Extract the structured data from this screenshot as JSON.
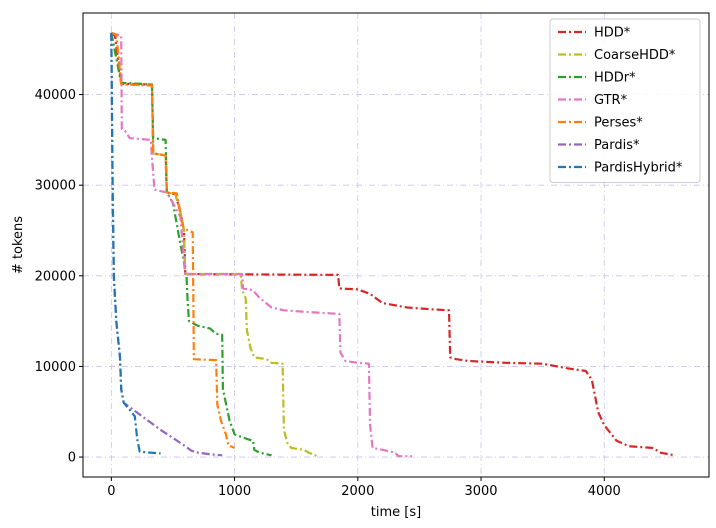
{
  "chart_data": {
    "type": "line",
    "title": "",
    "xlabel": "time [s]",
    "ylabel": "# tokens",
    "xlim": [
      -230,
      4850
    ],
    "ylim": [
      -2200,
      49000
    ],
    "xticks": [
      0,
      1000,
      2000,
      3000,
      4000
    ],
    "yticks": [
      0,
      10000,
      20000,
      30000,
      40000
    ],
    "grid": true,
    "legend_position": "top-right",
    "series": [
      {
        "name": "HDD*",
        "color": "#d62728",
        "points": [
          [
            0,
            46800
          ],
          [
            30,
            46500
          ],
          [
            80,
            41200
          ],
          [
            330,
            41100
          ],
          [
            340,
            33500
          ],
          [
            440,
            33300
          ],
          [
            450,
            29200
          ],
          [
            520,
            29000
          ],
          [
            560,
            27000
          ],
          [
            590,
            25000
          ],
          [
            600,
            20200
          ],
          [
            1840,
            20100
          ],
          [
            1850,
            18600
          ],
          [
            2000,
            18500
          ],
          [
            2100,
            18000
          ],
          [
            2200,
            17000
          ],
          [
            2400,
            16500
          ],
          [
            2600,
            16300
          ],
          [
            2740,
            16200
          ],
          [
            2750,
            11000
          ],
          [
            2800,
            10800
          ],
          [
            2900,
            10600
          ],
          [
            3200,
            10400
          ],
          [
            3500,
            10300
          ],
          [
            3700,
            9800
          ],
          [
            3850,
            9500
          ],
          [
            3900,
            8500
          ],
          [
            3950,
            5000
          ],
          [
            4000,
            3500
          ],
          [
            4100,
            1800
          ],
          [
            4200,
            1200
          ],
          [
            4400,
            1000
          ],
          [
            4450,
            500
          ],
          [
            4570,
            200
          ]
        ]
      },
      {
        "name": "CoarseHDD*",
        "color": "#bcbd22",
        "points": [
          [
            0,
            46800
          ],
          [
            80,
            41300
          ],
          [
            330,
            41100
          ],
          [
            340,
            33500
          ],
          [
            440,
            33300
          ],
          [
            450,
            29200
          ],
          [
            520,
            29000
          ],
          [
            560,
            27000
          ],
          [
            590,
            25000
          ],
          [
            600,
            20200
          ],
          [
            1050,
            20200
          ],
          [
            1060,
            18500
          ],
          [
            1090,
            17500
          ],
          [
            1100,
            14000
          ],
          [
            1130,
            12000
          ],
          [
            1160,
            11000
          ],
          [
            1260,
            10800
          ],
          [
            1300,
            10400
          ],
          [
            1390,
            10300
          ],
          [
            1400,
            3000
          ],
          [
            1430,
            1500
          ],
          [
            1460,
            1000
          ],
          [
            1560,
            800
          ],
          [
            1600,
            500
          ],
          [
            1670,
            100
          ]
        ]
      },
      {
        "name": "HDDr*",
        "color": "#2ca02c",
        "points": [
          [
            0,
            46800
          ],
          [
            80,
            41300
          ],
          [
            330,
            41100
          ],
          [
            340,
            35200
          ],
          [
            440,
            35000
          ],
          [
            450,
            29200
          ],
          [
            460,
            29000
          ],
          [
            500,
            28000
          ],
          [
            560,
            23500
          ],
          [
            590,
            21500
          ],
          [
            600,
            20200
          ],
          [
            610,
            20000
          ],
          [
            620,
            17000
          ],
          [
            630,
            15000
          ],
          [
            700,
            14500
          ],
          [
            800,
            14200
          ],
          [
            850,
            13600
          ],
          [
            900,
            13500
          ],
          [
            905,
            7500
          ],
          [
            960,
            4000
          ],
          [
            1000,
            2500
          ],
          [
            1100,
            2000
          ],
          [
            1150,
            1800
          ],
          [
            1160,
            800
          ],
          [
            1200,
            500
          ],
          [
            1300,
            200
          ]
        ]
      },
      {
        "name": "GTR*",
        "color": "#e377c2",
        "points": [
          [
            0,
            46800
          ],
          [
            80,
            46500
          ],
          [
            85,
            36200
          ],
          [
            110,
            36000
          ],
          [
            150,
            35200
          ],
          [
            320,
            35000
          ],
          [
            330,
            33000
          ],
          [
            350,
            29500
          ],
          [
            450,
            29200
          ],
          [
            500,
            28000
          ],
          [
            560,
            26500
          ],
          [
            600,
            20200
          ],
          [
            1060,
            20200
          ],
          [
            1070,
            18600
          ],
          [
            1150,
            18400
          ],
          [
            1200,
            17600
          ],
          [
            1300,
            16500
          ],
          [
            1400,
            16200
          ],
          [
            1600,
            16000
          ],
          [
            1850,
            15800
          ],
          [
            1860,
            11500
          ],
          [
            1900,
            10600
          ],
          [
            2000,
            10400
          ],
          [
            2090,
            10300
          ],
          [
            2100,
            3500
          ],
          [
            2120,
            1000
          ],
          [
            2200,
            800
          ],
          [
            2300,
            500
          ],
          [
            2330,
            100
          ],
          [
            2440,
            100
          ]
        ]
      },
      {
        "name": "Perses*",
        "color": "#ff7f0e",
        "points": [
          [
            0,
            46800
          ],
          [
            40,
            46600
          ],
          [
            80,
            41200
          ],
          [
            120,
            41100
          ],
          [
            330,
            41000
          ],
          [
            340,
            33500
          ],
          [
            440,
            33300
          ],
          [
            450,
            29200
          ],
          [
            530,
            29100
          ],
          [
            540,
            28500
          ],
          [
            560,
            27000
          ],
          [
            580,
            25500
          ],
          [
            620,
            25000
          ],
          [
            660,
            24800
          ],
          [
            670,
            10800
          ],
          [
            850,
            10700
          ],
          [
            860,
            5800
          ],
          [
            890,
            4000
          ],
          [
            930,
            2500
          ],
          [
            950,
            1300
          ],
          [
            1000,
            1000
          ]
        ]
      },
      {
        "name": "Pardis*",
        "color": "#9467bd",
        "points": [
          [
            0,
            46800
          ],
          [
            10,
            30000
          ],
          [
            20,
            20000
          ],
          [
            40,
            15000
          ],
          [
            70,
            11000
          ],
          [
            80,
            7500
          ],
          [
            100,
            6000
          ],
          [
            150,
            5500
          ],
          [
            200,
            5000
          ],
          [
            300,
            4000
          ],
          [
            400,
            3000
          ],
          [
            500,
            2100
          ],
          [
            600,
            1200
          ],
          [
            650,
            700
          ],
          [
            700,
            500
          ],
          [
            800,
            300
          ],
          [
            900,
            200
          ]
        ]
      },
      {
        "name": "PardisHybrid*",
        "color": "#1f77b4",
        "points": [
          [
            0,
            46800
          ],
          [
            10,
            30000
          ],
          [
            20,
            20000
          ],
          [
            40,
            15000
          ],
          [
            70,
            11000
          ],
          [
            80,
            7500
          ],
          [
            100,
            6000
          ],
          [
            150,
            5200
          ],
          [
            190,
            4500
          ],
          [
            210,
            2000
          ],
          [
            230,
            600
          ],
          [
            300,
            500
          ],
          [
            400,
            400
          ]
        ]
      }
    ]
  }
}
